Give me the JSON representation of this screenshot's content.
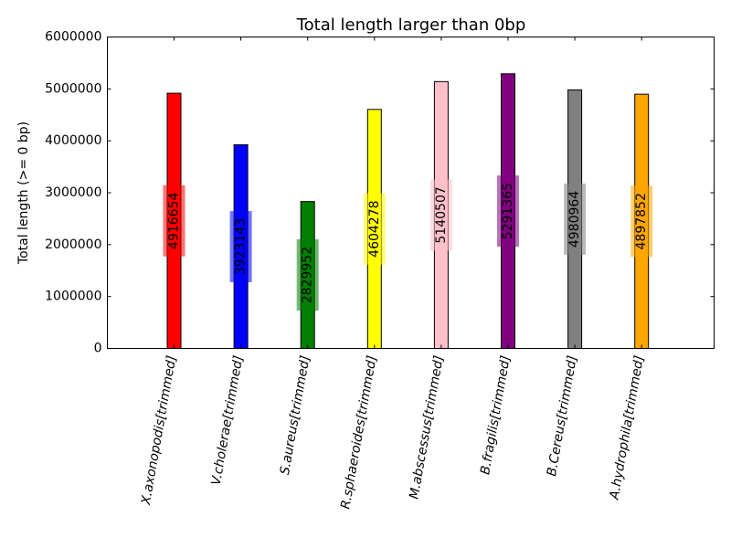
{
  "chart_data": {
    "type": "bar",
    "title": "Total length larger than 0bp",
    "xlabel": "",
    "ylabel": "Total length (>= 0 bp)",
    "ylim": [
      0,
      6000000
    ],
    "yticks": [
      0,
      1000000,
      2000000,
      3000000,
      4000000,
      5000000,
      6000000
    ],
    "yticks_labels": [
      "0",
      "1000000",
      "2000000",
      "3000000",
      "4000000",
      "5000000",
      "6000000"
    ],
    "grid": false,
    "legend": "none",
    "categories": [
      "X.axonopodis[trimmed]",
      "V.cholerae[trimmed]",
      "S.aureus[trimmed]",
      "R.sphaeroides[trimmed]",
      "M.abscessus[trimmed]",
      "B.fragilis[trimmed]",
      "B.Cereus[trimmed]",
      "A.hydrophila[trimmed]"
    ],
    "values": [
      4916654,
      3923143,
      2829952,
      4604278,
      5140507,
      5291365,
      4980964,
      4897852
    ],
    "value_labels": [
      "4916654",
      "3923143",
      "2829952",
      "4604278",
      "5140507",
      "5291365",
      "4980964",
      "4897852"
    ],
    "colors": [
      "#ff0000",
      "#0000ff",
      "#007f00",
      "#ffff00",
      "#ffc0cb",
      "#800080",
      "#808080",
      "#ffa500"
    ]
  }
}
